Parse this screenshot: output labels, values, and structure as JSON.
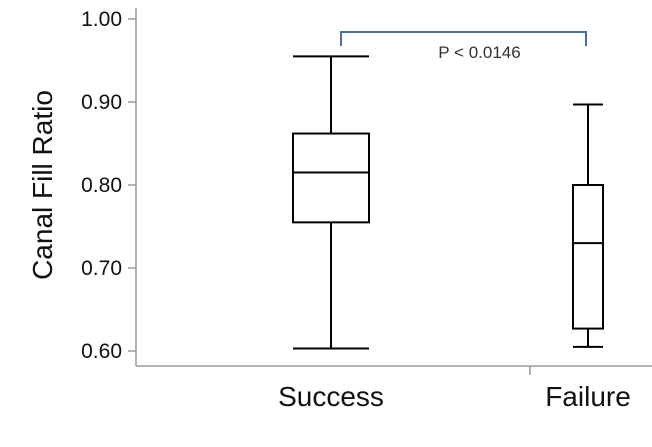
{
  "chart_data": {
    "type": "box",
    "ylabel": "Canal Fill Ratio",
    "xlabel": "",
    "ylim": [
      0.6,
      1.0
    ],
    "yticks": [
      "0.60",
      "0.70",
      "0.80",
      "0.90",
      "1.00"
    ],
    "categories": [
      "Success",
      "Failure"
    ],
    "boxes": [
      {
        "category": "Success",
        "min": 0.603,
        "q1": 0.755,
        "median": 0.815,
        "q3": 0.862,
        "max": 0.955
      },
      {
        "category": "Failure",
        "min": 0.605,
        "q1": 0.627,
        "median": 0.73,
        "q3": 0.8,
        "max": 0.897
      }
    ],
    "annotation": {
      "text": "P < 0.0146",
      "from": "Success",
      "to": "Failure"
    },
    "grid": false,
    "colors": {
      "box_stroke": "#000000",
      "bracket": "#4a6f8f",
      "axis": "#9a9a9a"
    }
  }
}
